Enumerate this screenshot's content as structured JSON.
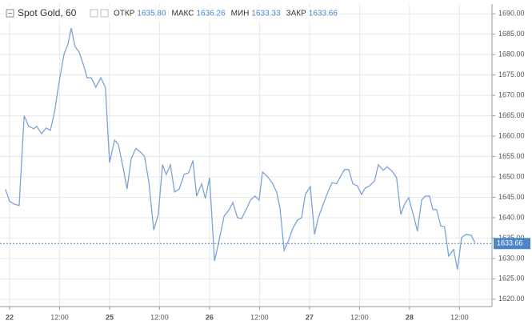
{
  "chart_data": {
    "type": "line",
    "title": "Spot Gold, 60",
    "ohlc": [
      {
        "name": "ОТКР",
        "value": 1635.8,
        "label": "1635.80"
      },
      {
        "name": "МАКС",
        "value": 1636.26,
        "label": "1636.26"
      },
      {
        "name": "МИН",
        "value": 1633.33,
        "label": "1633.33"
      },
      {
        "name": "ЗАКР",
        "value": 1633.66,
        "label": "1633.66"
      }
    ],
    "x": [
      -1.0,
      0,
      1.2,
      2.3,
      3.5,
      4.6,
      5.8,
      6.5,
      7.7,
      8.8,
      9.8,
      10.8,
      12.0,
      13.1,
      14.0,
      14.8,
      15.7,
      16.7,
      17.7,
      18.6,
      19.6,
      20.7,
      21.9,
      23.0,
      24.0,
      25.2,
      26.1,
      27.3,
      28.2,
      29.2,
      30.3,
      31.5,
      32.4,
      33.4,
      34.6,
      35.7,
      36.7,
      37.6,
      38.6,
      39.6,
      40.7,
      41.9,
      43.0,
      44.0,
      44.9,
      46.1,
      47.0,
      48.0,
      49.2,
      50.3,
      51.5,
      52.6,
      53.6,
      54.7,
      55.7,
      56.8,
      57.8,
      58.9,
      59.9,
      60.7,
      61.8,
      63.0,
      64.1,
      64.9,
      65.9,
      67.0,
      68.0,
      69.1,
      70.1,
      71.0,
      72.2,
      73.2,
      74.1,
      75.3,
      76.4,
      77.4,
      78.5,
      79.5,
      80.4,
      81.4,
      82.4,
      83.5,
      84.5,
      85.4,
      86.4,
      87.6,
      88.5,
      89.7,
      90.6,
      91.8,
      92.9,
      93.9,
      94.8,
      95.8,
      97.0,
      97.9,
      98.9,
      99.8,
      100.8,
      101.6,
      102.5,
      103.5,
      104.4,
      105.4,
      106.6,
      107.5,
      108.5,
      109.6,
      110.8,
      111.7
    ],
    "series": [
      {
        "name": "Spot Gold",
        "color": "#7ca3d8",
        "values": [
          1647,
          1644,
          1643.3,
          1643,
          1665,
          1662.4,
          1661.8,
          1662.4,
          1660.6,
          1662,
          1661.4,
          1666,
          1674,
          1680.2,
          1682.5,
          1686.5,
          1682,
          1680.6,
          1677.6,
          1674.3,
          1674.3,
          1672,
          1674.3,
          1672,
          1653.5,
          1659,
          1658,
          1652,
          1647,
          1654.5,
          1657,
          1656,
          1655,
          1649,
          1637,
          1640.8,
          1653,
          1650.6,
          1653,
          1646.3,
          1647,
          1650.6,
          1651,
          1654,
          1645.3,
          1648.3,
          1644.7,
          1649.8,
          1629.4,
          1634.5,
          1640.4,
          1641.8,
          1643.7,
          1640,
          1639.8,
          1642,
          1644.3,
          1645.3,
          1644.3,
          1651.2,
          1650.2,
          1648.6,
          1646.3,
          1642.4,
          1632,
          1634.5,
          1637.4,
          1639.4,
          1640,
          1645.7,
          1647.6,
          1635.9,
          1640,
          1643.3,
          1646.3,
          1648.6,
          1648.3,
          1650.2,
          1651.8,
          1651.8,
          1648.3,
          1647.8,
          1645.7,
          1647.3,
          1647.8,
          1649,
          1653,
          1651.6,
          1652.5,
          1651.4,
          1649.8,
          1640.8,
          1643.3,
          1644.9,
          1640.4,
          1636.7,
          1644.3,
          1645.3,
          1645.3,
          1642,
          1642,
          1638,
          1637.8,
          1630.6,
          1632.2,
          1627.3,
          1635.1,
          1635.9,
          1635.7,
          1633.9
        ]
      }
    ],
    "last_price": 1633.66,
    "last_color": "#4a86c8",
    "xlim": [
      -2.3,
      115.8
    ],
    "xticks": [
      {
        "value": 0,
        "label": "22"
      },
      {
        "value": 12,
        "label": "12:00"
      },
      {
        "value": 24,
        "label": "25"
      },
      {
        "value": 36,
        "label": "12:00"
      },
      {
        "value": 48,
        "label": "26"
      },
      {
        "value": 60,
        "label": "12:00"
      },
      {
        "value": 72,
        "label": "27"
      },
      {
        "value": 84,
        "label": "12:00"
      },
      {
        "value": 96,
        "label": "28"
      },
      {
        "value": 108,
        "label": "12:00"
      }
    ],
    "ylim": [
      1618.2,
      1692.4
    ],
    "yticks": [
      {
        "value": 1620,
        "label": "1620.00"
      },
      {
        "value": 1625,
        "label": "1625.00"
      },
      {
        "value": 1630,
        "label": "1630.00"
      },
      {
        "value": 1635,
        "label": "1635.00"
      },
      {
        "value": 1640,
        "label": "1640.00"
      },
      {
        "value": 1645,
        "label": "1645.00"
      },
      {
        "value": 1650,
        "label": "1650.00"
      },
      {
        "value": 1655,
        "label": "1655.00"
      },
      {
        "value": 1660,
        "label": "1660.00"
      },
      {
        "value": 1665,
        "label": "1665.00"
      },
      {
        "value": 1670,
        "label": "1670.00"
      },
      {
        "value": 1675,
        "label": "1675.00"
      },
      {
        "value": 1680,
        "label": "1680.00"
      },
      {
        "value": 1685,
        "label": "1685.00"
      },
      {
        "value": 1690,
        "label": "1690.00"
      }
    ],
    "grid": true,
    "axis_side": "right"
  }
}
